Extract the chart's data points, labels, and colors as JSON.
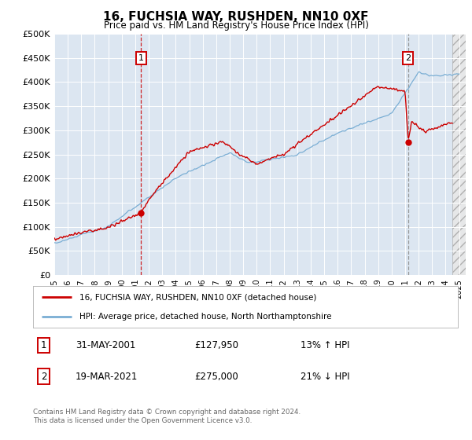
{
  "title": "16, FUCHSIA WAY, RUSHDEN, NN10 0XF",
  "subtitle": "Price paid vs. HM Land Registry's House Price Index (HPI)",
  "ylabel_ticks": [
    "£0",
    "£50K",
    "£100K",
    "£150K",
    "£200K",
    "£250K",
    "£300K",
    "£350K",
    "£400K",
    "£450K",
    "£500K"
  ],
  "ytick_vals": [
    0,
    50000,
    100000,
    150000,
    200000,
    250000,
    300000,
    350000,
    400000,
    450000,
    500000
  ],
  "ylim": [
    0,
    500000
  ],
  "xlim_start": 1995.0,
  "xlim_end": 2025.5,
  "background_color": "#dce6f1",
  "red_color": "#cc0000",
  "blue_color": "#7aaed4",
  "marker1_date": "31-MAY-2001",
  "marker1_price": 127950,
  "marker1_label": "£127,950",
  "marker1_hpi": "13% ↑ HPI",
  "marker2_date": "19-MAR-2021",
  "marker2_price": 275000,
  "marker2_label": "£275,000",
  "marker2_hpi": "21% ↓ HPI",
  "legend_line1": "16, FUCHSIA WAY, RUSHDEN, NN10 0XF (detached house)",
  "legend_line2": "HPI: Average price, detached house, North Northamptonshire",
  "footer_line1": "Contains HM Land Registry data © Crown copyright and database right 2024.",
  "footer_line2": "This data is licensed under the Open Government Licence v3.0.",
  "marker1_x": 2001.42,
  "marker2_x": 2021.22
}
